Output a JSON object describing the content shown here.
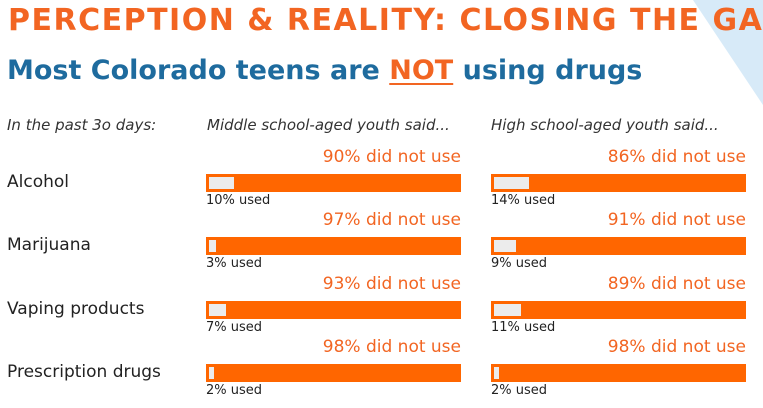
{
  "header": {
    "title": "PERCEPTION & REALITY: CLOSING THE GAP",
    "subtitle_pre": "Most Colorado teens are ",
    "subtitle_emph": "NOT",
    "subtitle_post": " using drugs"
  },
  "colors": {
    "accent": "#f26522",
    "bar": "#ff6600",
    "used_fill": "#ececec",
    "subtitle": "#1e6b9e"
  },
  "chart_data": {
    "type": "bar",
    "period_label": "In the past 3o days:",
    "groups": [
      {
        "name": "Middle school-aged youth said..."
      },
      {
        "name": "High school-aged youth said..."
      }
    ],
    "categories": [
      "Alcohol",
      "Marijuana",
      "Vaping products",
      "Prescription drugs"
    ],
    "series": [
      {
        "name": "Middle school-aged youth said...",
        "used_pct": [
          10,
          3,
          7,
          2
        ],
        "not_used_pct": [
          90,
          97,
          93,
          98
        ],
        "used_labels": [
          "10% used",
          "3% used",
          "7% used",
          "2% used"
        ],
        "not_used_labels": [
          "90% did not use",
          "97% did not use",
          "93% did not use",
          "98% did not use"
        ]
      },
      {
        "name": "High school-aged youth said...",
        "used_pct": [
          14,
          9,
          11,
          2
        ],
        "not_used_pct": [
          86,
          91,
          89,
          98
        ],
        "used_labels": [
          "14% used",
          "9% used",
          "11% used",
          "2% used"
        ],
        "not_used_labels": [
          "86% did not use",
          "91% did not use",
          "89% did not use",
          "98% did not use"
        ]
      }
    ],
    "ylim": [
      0,
      100
    ]
  }
}
